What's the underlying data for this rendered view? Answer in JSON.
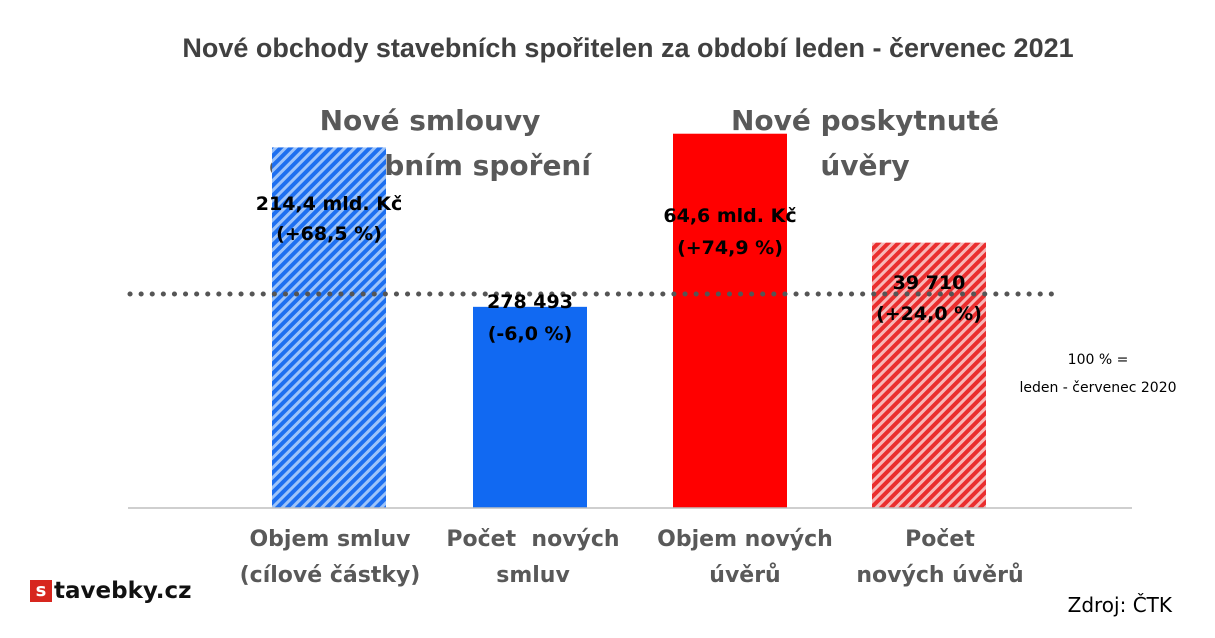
{
  "chart_data": {
    "type": "bar",
    "title": "Nové obchody stavebních spořitelen za období leden - červenec 2021",
    "groups": [
      {
        "title_lines": [
          "Nové smlouvy",
          "o stavebním spoření"
        ]
      },
      {
        "title_lines": [
          "Nové poskytnuté",
          "úvěry"
        ]
      }
    ],
    "categories": [
      [
        "Objem smluv",
        "(cílové částky)"
      ],
      [
        "Počet  nových",
        "smluv"
      ],
      [
        "Objem nových",
        "úvěrů"
      ],
      [
        "Počet",
        "nových úvěrů"
      ]
    ],
    "values_percent_of_reference": [
      168.5,
      94.0,
      174.9,
      124.0
    ],
    "data_labels": [
      [
        "214,4 mld. Kč",
        "(+68,5 %)"
      ],
      [
        "278 493",
        "(-6,0 %)"
      ],
      [
        "64,6 mld. Kč",
        "(+74,9 %)"
      ],
      [
        "39 710",
        "(+24,0 %)"
      ]
    ],
    "colors": [
      "#3d85f0",
      "#1169f2",
      "#ff0000",
      "#f05050"
    ],
    "patterns": [
      "hatched",
      "solid",
      "solid",
      "hatched"
    ],
    "reference_line": {
      "value": 100,
      "label_lines": [
        "100 % =",
        "leden - červenec 2020"
      ],
      "style": "dotted"
    },
    "ylim": [
      0,
      200
    ]
  },
  "source": "Zdroj: ČTK",
  "logo": {
    "mark": "s",
    "text": "tavebky.cz"
  }
}
